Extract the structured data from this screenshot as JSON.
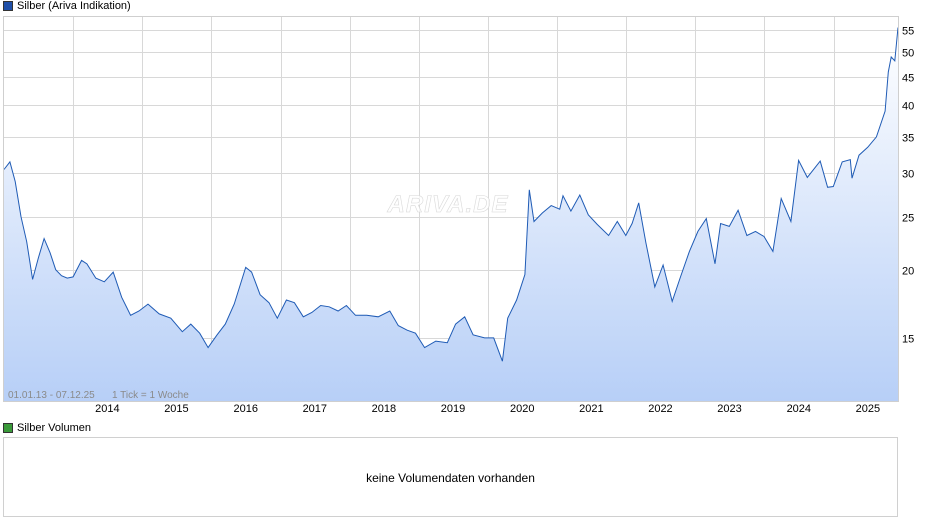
{
  "legend_price": {
    "label": "Silber (Ariva Indikation)",
    "color": "#1f4fa8"
  },
  "legend_volume": {
    "label": "Silber Volumen",
    "color": "#3a9a3a"
  },
  "watermark": "ARIVA.DE",
  "range_info": "01.01.13 - 07.12.25",
  "tick_info": "1 Tick = 1 Woche",
  "volume_message": "keine Volumendaten vorhanden",
  "colors": {
    "line": "#1f5bb5",
    "fill_top": "#ffffff",
    "fill_bottom": "#b7cff7",
    "grid": "#d8d8d8"
  },
  "chart_data": {
    "type": "area",
    "title": "Silber (Ariva Indikation)",
    "y_scale": "log",
    "ylim": [
      11.5,
      58
    ],
    "x_range": [
      "2013-01-01",
      "2025-12-07"
    ],
    "y_ticks": [
      15,
      20,
      25,
      30,
      35,
      40,
      45,
      50,
      55
    ],
    "x_ticks": [
      "2014",
      "2015",
      "2016",
      "2017",
      "2018",
      "2019",
      "2020",
      "2021",
      "2022",
      "2023",
      "2024",
      "2025"
    ],
    "grid": true,
    "series": [
      {
        "name": "Silber",
        "x": [
          "2013-01-01",
          "2013-02-01",
          "2013-03-01",
          "2013-04-01",
          "2013-05-01",
          "2013-06-01",
          "2013-07-01",
          "2013-08-01",
          "2013-09-01",
          "2013-10-01",
          "2013-11-01",
          "2013-12-01",
          "2014-01-01",
          "2014-02-15",
          "2014-03-15",
          "2014-05-01",
          "2014-06-15",
          "2014-08-01",
          "2014-09-15",
          "2014-11-01",
          "2014-12-15",
          "2015-02-01",
          "2015-04-01",
          "2015-06-01",
          "2015-08-01",
          "2015-09-15",
          "2015-11-01",
          "2015-12-15",
          "2016-02-01",
          "2016-03-15",
          "2016-05-01",
          "2016-07-01",
          "2016-08-01",
          "2016-09-15",
          "2016-11-01",
          "2016-12-15",
          "2017-02-01",
          "2017-03-15",
          "2017-05-01",
          "2017-06-15",
          "2017-08-01",
          "2017-09-15",
          "2017-11-01",
          "2017-12-15",
          "2018-02-01",
          "2018-04-01",
          "2018-06-01",
          "2018-08-01",
          "2018-09-15",
          "2018-11-01",
          "2018-12-15",
          "2019-02-01",
          "2019-04-01",
          "2019-06-01",
          "2019-07-15",
          "2019-09-01",
          "2019-10-15",
          "2019-12-15",
          "2020-02-01",
          "2020-03-18",
          "2020-04-15",
          "2020-06-01",
          "2020-07-15",
          "2020-08-07",
          "2020-09-01",
          "2020-10-15",
          "2020-12-01",
          "2021-01-15",
          "2021-02-01",
          "2021-03-15",
          "2021-05-01",
          "2021-06-15",
          "2021-08-01",
          "2021-09-30",
          "2021-11-15",
          "2021-12-30",
          "2022-02-01",
          "2022-03-08",
          "2022-04-15",
          "2022-06-01",
          "2022-07-15",
          "2022-09-01",
          "2022-10-15",
          "2022-12-01",
          "2023-01-15",
          "2023-02-28",
          "2023-04-15",
          "2023-05-15",
          "2023-06-30",
          "2023-08-15",
          "2023-10-01",
          "2023-11-15",
          "2023-12-30",
          "2024-02-15",
          "2024-03-30",
          "2024-05-20",
          "2024-06-30",
          "2024-08-15",
          "2024-10-22",
          "2024-11-30",
          "2024-12-30",
          "2025-02-15",
          "2025-03-30",
          "2025-04-08",
          "2025-05-15",
          "2025-06-30",
          "2025-08-15",
          "2025-09-30",
          "2025-10-17",
          "2025-11-01",
          "2025-11-20",
          "2025-12-07"
        ],
        "values": [
          30.5,
          31.5,
          29,
          25,
          22.5,
          19.2,
          21,
          22.8,
          21.5,
          20,
          19.5,
          19.3,
          19.4,
          20.8,
          20.5,
          19.3,
          19,
          19.8,
          17.8,
          16.5,
          16.8,
          17.3,
          16.6,
          16.3,
          15.4,
          15.9,
          15.3,
          14.4,
          15.2,
          15.9,
          17.3,
          20.2,
          19.8,
          18,
          17.4,
          16.3,
          17.6,
          17.4,
          16.4,
          16.7,
          17.2,
          17.1,
          16.8,
          17.2,
          16.5,
          16.5,
          16.4,
          16.8,
          15.8,
          15.5,
          15.3,
          14.4,
          14.8,
          14.7,
          15.9,
          16.4,
          15.2,
          15,
          15,
          13.6,
          16.3,
          17.6,
          19.6,
          28,
          24.5,
          25.4,
          26.2,
          25.8,
          27.3,
          25.6,
          27.4,
          25.2,
          24.2,
          23.1,
          24.5,
          23.1,
          24.3,
          26.5,
          22.4,
          18.6,
          20.4,
          17.5,
          19.4,
          21.6,
          23.5,
          24.8,
          20.5,
          24.3,
          24,
          25.7,
          23.1,
          23.5,
          23,
          21.6,
          27,
          24.5,
          31.7,
          29.5,
          31.6,
          28.3,
          28.4,
          31.5,
          31.8,
          29.4,
          32.4,
          33.5,
          35,
          39,
          46,
          49,
          48.2,
          55.5
        ]
      }
    ]
  }
}
